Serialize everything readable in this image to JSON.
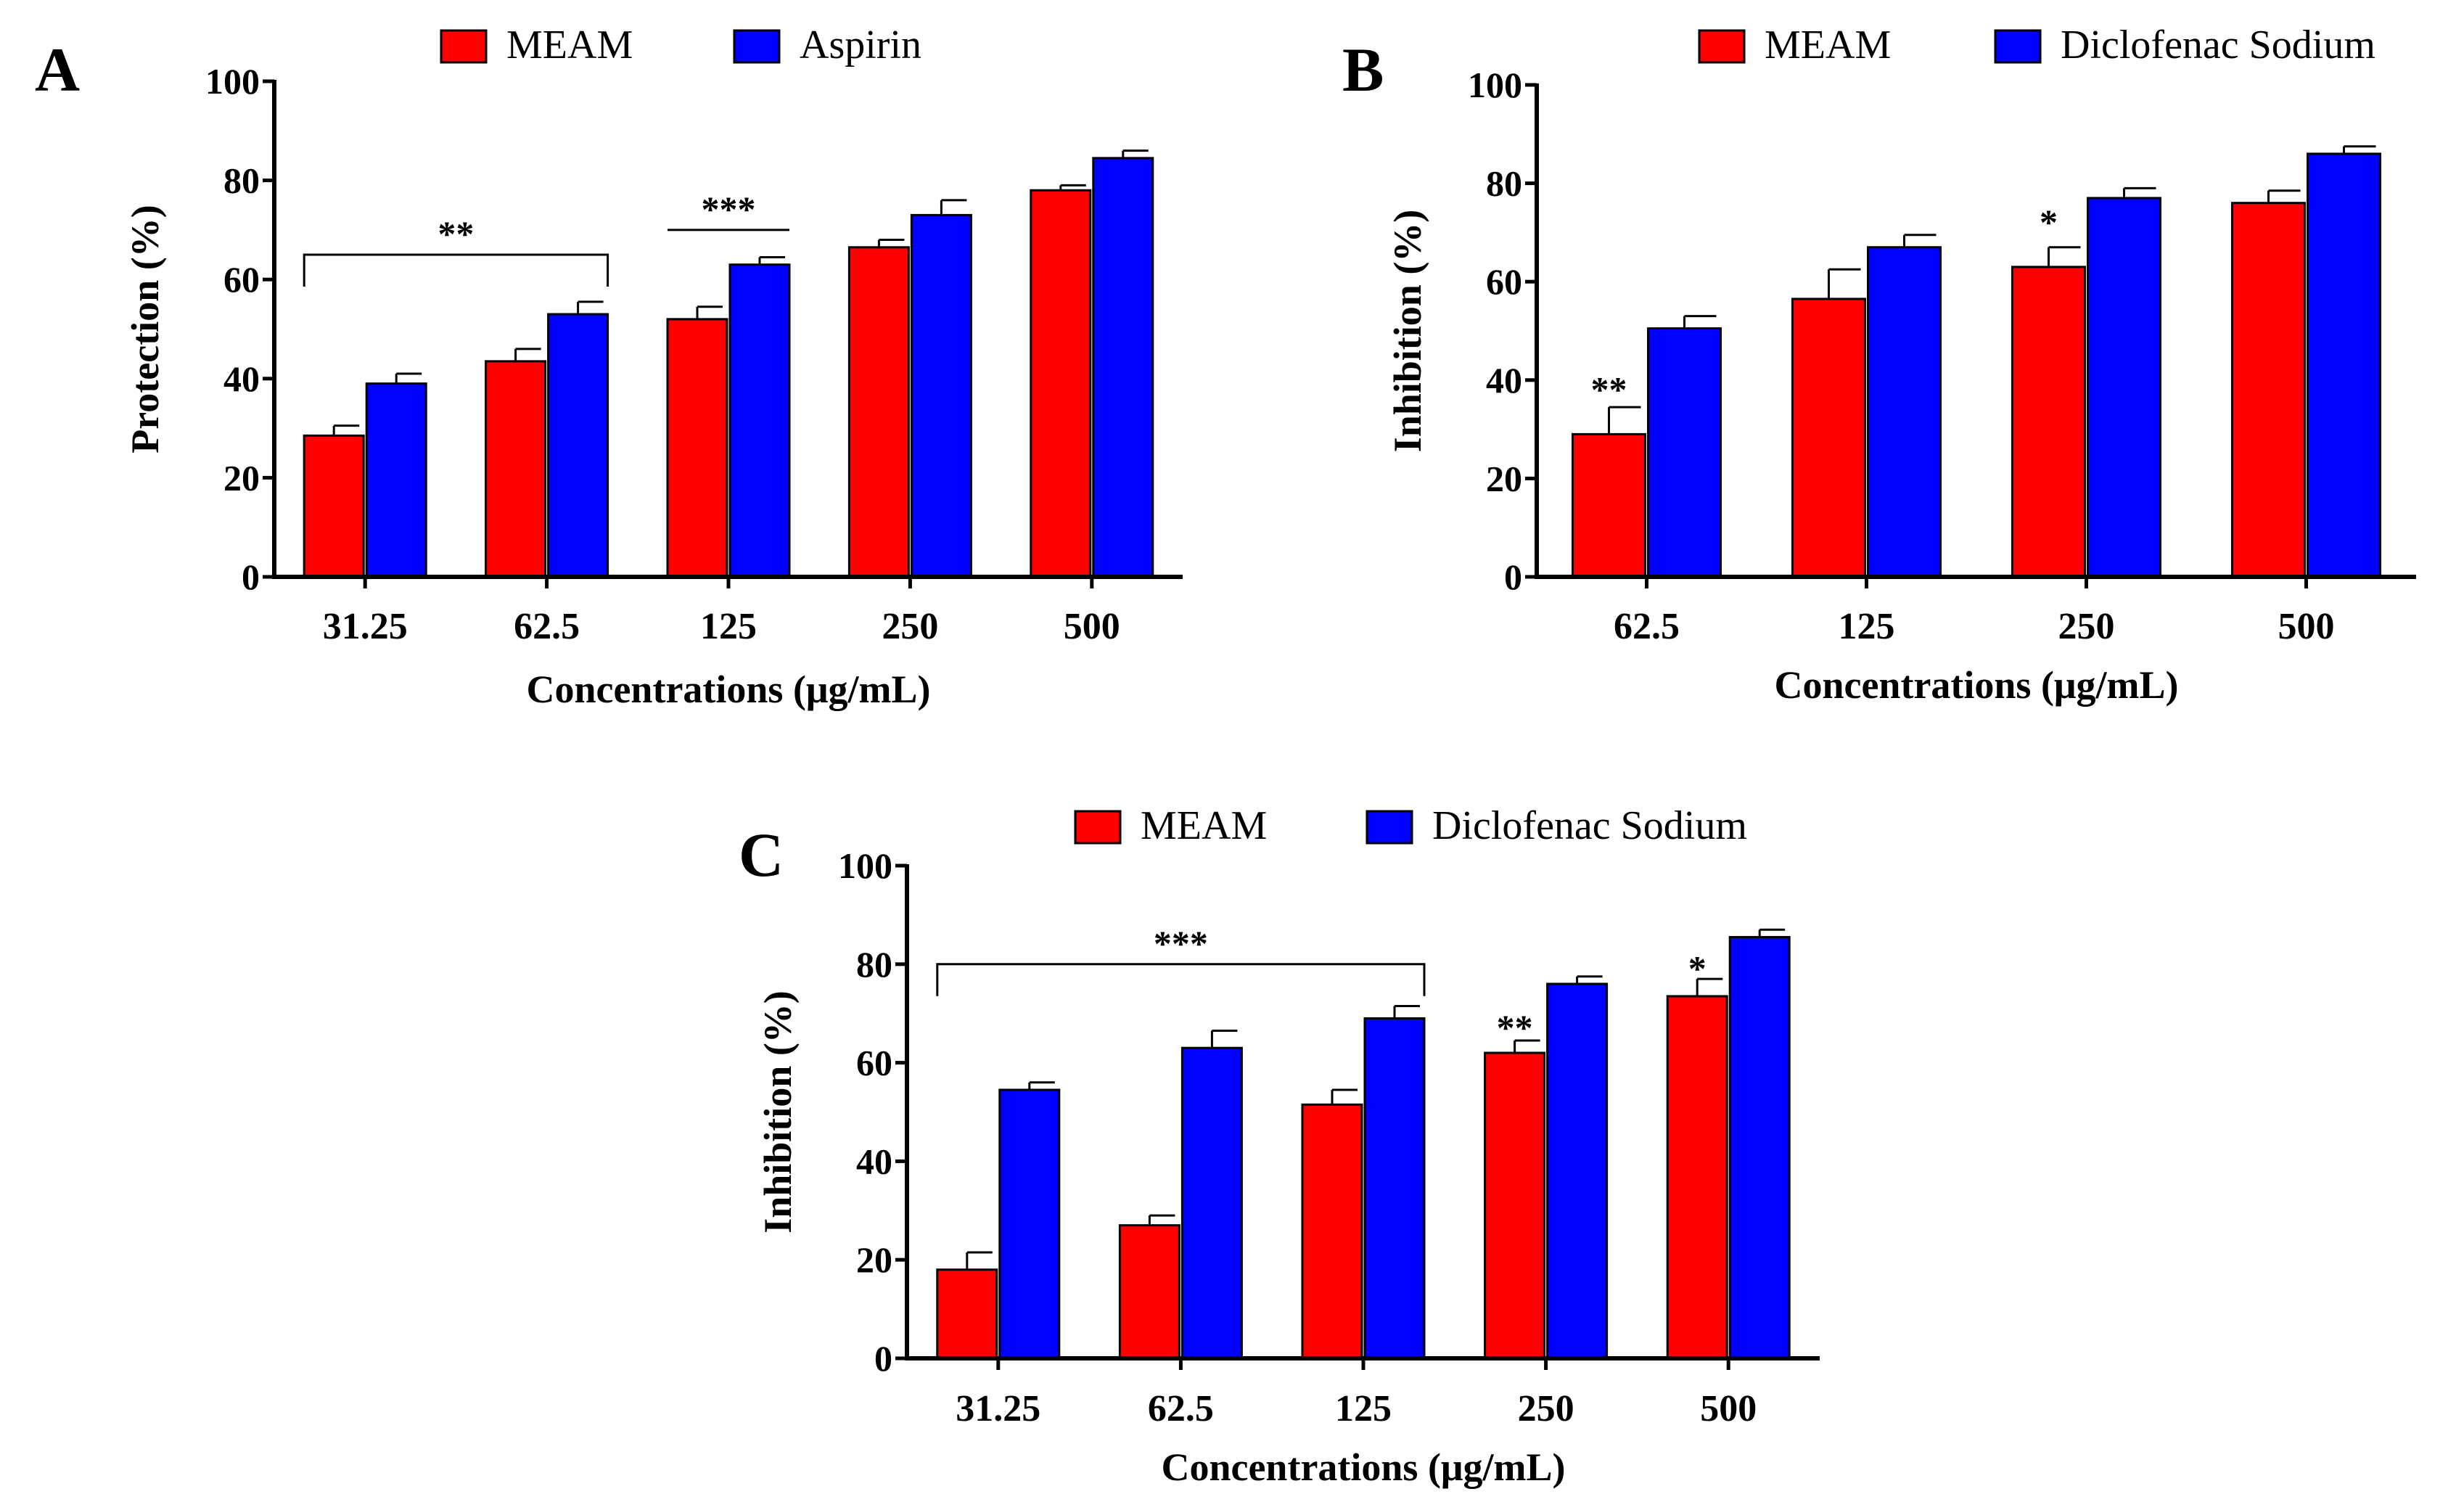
{
  "chart_data": [
    {
      "panel": "A",
      "type": "bar",
      "categories": [
        "31.25",
        "62.5",
        "125",
        "250",
        "500"
      ],
      "series": [
        {
          "name": "MEAM",
          "color": "#ff0000",
          "values": [
            28.5,
            43.5,
            52,
            66.5,
            78
          ],
          "errors": [
            2,
            2.5,
            2.5,
            1.5,
            1
          ]
        },
        {
          "name": "Aspirin",
          "color": "#0000ff",
          "values": [
            39,
            53,
            63,
            73,
            84.5
          ],
          "errors": [
            2,
            2.5,
            1.5,
            3,
            1.5
          ]
        }
      ],
      "xlabel": "Concentrations (μg/mL)",
      "ylabel": "Protection (%)",
      "ylim": [
        0,
        100
      ],
      "yticks": [
        "0",
        "20",
        "40",
        "60",
        "80",
        "100"
      ],
      "annotations": [
        {
          "text": "**",
          "kind": "bracket",
          "from": 0,
          "to": 1,
          "y": 65
        },
        {
          "text": "***",
          "kind": "line",
          "from": 2,
          "to": 2,
          "y": 70
        }
      ]
    },
    {
      "panel": "B",
      "type": "bar",
      "categories": [
        "62.5",
        "125",
        "250",
        "500"
      ],
      "series": [
        {
          "name": "MEAM",
          "color": "#ff0000",
          "values": [
            29,
            56.5,
            63,
            76
          ],
          "errors": [
            5.5,
            6,
            4,
            2.5
          ]
        },
        {
          "name": "Diclofenac Sodium",
          "color": "#0000ff",
          "values": [
            50.5,
            67,
            77,
            86
          ],
          "errors": [
            2.5,
            2.5,
            2,
            1.5
          ]
        }
      ],
      "xlabel": "Concentrations (μg/mL)",
      "ylabel": "Inhibition (%)",
      "ylim": [
        0,
        100
      ],
      "yticks": [
        "0",
        "20",
        "40",
        "60",
        "80",
        "100"
      ],
      "annotations": [
        {
          "text": "**",
          "kind": "star",
          "category": 0,
          "y": 38
        },
        {
          "text": "*",
          "kind": "star",
          "category": 2,
          "y": 72
        }
      ]
    },
    {
      "panel": "C",
      "type": "bar",
      "categories": [
        "31.25",
        "62.5",
        "125",
        "250",
        "500"
      ],
      "series": [
        {
          "name": "MEAM",
          "color": "#ff0000",
          "values": [
            18,
            27,
            51.5,
            62,
            73.5
          ],
          "errors": [
            3.5,
            2,
            3,
            2.5,
            3.5
          ]
        },
        {
          "name": "Diclofenac Sodium",
          "color": "#0000ff",
          "values": [
            54.5,
            63,
            69,
            76,
            85.5
          ],
          "errors": [
            1.5,
            3.5,
            2.5,
            1.5,
            1.5
          ]
        }
      ],
      "xlabel": "Concentrations (μg/mL)",
      "ylabel": "Inhibition (%)",
      "ylim": [
        0,
        100
      ],
      "yticks": [
        "0",
        "20",
        "40",
        "60",
        "80",
        "100"
      ],
      "annotations": [
        {
          "text": "***",
          "kind": "bracket",
          "from": 0,
          "to": 2,
          "y": 80
        },
        {
          "text": "**",
          "kind": "star",
          "category": 3,
          "y": 67
        },
        {
          "text": "*",
          "kind": "star",
          "category": 4,
          "y": 79
        }
      ]
    }
  ]
}
